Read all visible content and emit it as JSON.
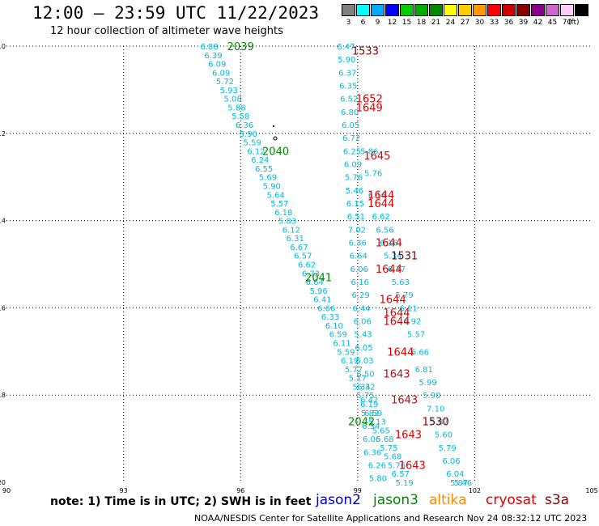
{
  "header": {
    "title": "12:00 — 23:59 UTC 11/22/2023",
    "subtitle": "12 hour collection of altimeter wave heights"
  },
  "colorbar": {
    "unit": "(ft)",
    "steps": [
      {
        "label": "3",
        "color": "#808080"
      },
      {
        "label": "6",
        "color": "#00ffff"
      },
      {
        "label": "9",
        "color": "#00aaff"
      },
      {
        "label": "12",
        "color": "#0000ff"
      },
      {
        "label": "15",
        "color": "#00cc00"
      },
      {
        "label": "18",
        "color": "#00aa00"
      },
      {
        "label": "21",
        "color": "#008800"
      },
      {
        "label": "24",
        "color": "#ffff00"
      },
      {
        "label": "27",
        "color": "#ffcc00"
      },
      {
        "label": "30",
        "color": "#ff9900"
      },
      {
        "label": "33",
        "color": "#ff0000"
      },
      {
        "label": "36",
        "color": "#cc0000"
      },
      {
        "label": "39",
        "color": "#880000"
      },
      {
        "label": "42",
        "color": "#880088"
      },
      {
        "label": "45",
        "color": "#cc66cc"
      },
      {
        "label": "70",
        "color": "#ffccff"
      },
      {
        "label": "",
        "color": "#000000"
      }
    ]
  },
  "axes": {
    "lon_ticks": [
      "90",
      "93",
      "96",
      "99",
      "102",
      "105"
    ],
    "lat_ticks": [
      "-10",
      "-12",
      "-14",
      "-16",
      "-18",
      "-20"
    ],
    "lon_range": [
      90,
      105
    ],
    "lat_range": [
      -20,
      -10
    ]
  },
  "colors": {
    "swh": "#00bbdd",
    "jason2": "#0000cc",
    "jason3": "#008800",
    "altika": "#ff8800",
    "cryosat": "#dd0000",
    "s3a": "#880000"
  },
  "tracks": [
    {
      "name": "track-a",
      "values": [
        {
          "lon": 95.2,
          "lat": -10.0,
          "v": "6.88"
        },
        {
          "lon": 95.3,
          "lat": -10.2,
          "v": "6.39"
        },
        {
          "lon": 95.4,
          "lat": -10.4,
          "v": "6.09"
        },
        {
          "lon": 95.5,
          "lat": -10.6,
          "v": "6.09"
        },
        {
          "lon": 95.6,
          "lat": -10.8,
          "v": "5.72"
        },
        {
          "lon": 95.7,
          "lat": -11.0,
          "v": "5.93"
        },
        {
          "lon": 95.8,
          "lat": -11.2,
          "v": "5.08"
        },
        {
          "lon": 95.9,
          "lat": -11.4,
          "v": "5.88"
        },
        {
          "lon": 96.0,
          "lat": -11.6,
          "v": "5.58"
        },
        {
          "lon": 96.1,
          "lat": -11.8,
          "v": "6.36"
        },
        {
          "lon": 96.2,
          "lat": -12.0,
          "v": "5.90"
        },
        {
          "lon": 96.3,
          "lat": -12.2,
          "v": "5.59"
        },
        {
          "lon": 96.4,
          "lat": -12.4,
          "v": "6.12"
        },
        {
          "lon": 96.5,
          "lat": -12.6,
          "v": "6.24"
        },
        {
          "lon": 96.6,
          "lat": -12.8,
          "v": "6.55"
        },
        {
          "lon": 96.7,
          "lat": -13.0,
          "v": "5.69"
        },
        {
          "lon": 96.8,
          "lat": -13.2,
          "v": "5.90"
        },
        {
          "lon": 96.9,
          "lat": -13.4,
          "v": "5.64"
        },
        {
          "lon": 97.0,
          "lat": -13.6,
          "v": "5.57"
        },
        {
          "lon": 97.1,
          "lat": -13.8,
          "v": "6.18"
        },
        {
          "lon": 97.2,
          "lat": -14.0,
          "v": "5.83"
        },
        {
          "lon": 97.3,
          "lat": -14.2,
          "v": "6.12"
        },
        {
          "lon": 97.4,
          "lat": -14.4,
          "v": "6.31"
        },
        {
          "lon": 97.5,
          "lat": -14.6,
          "v": "6.67"
        },
        {
          "lon": 97.6,
          "lat": -14.8,
          "v": "6.57"
        },
        {
          "lon": 97.7,
          "lat": -15.0,
          "v": "6.62"
        },
        {
          "lon": 97.8,
          "lat": -15.2,
          "v": "6.73"
        },
        {
          "lon": 97.9,
          "lat": -15.4,
          "v": "6.64"
        },
        {
          "lon": 98.0,
          "lat": -15.6,
          "v": "5.96"
        },
        {
          "lon": 98.1,
          "lat": -15.8,
          "v": "6.41"
        },
        {
          "lon": 98.2,
          "lat": -16.0,
          "v": "6.66"
        },
        {
          "lon": 98.3,
          "lat": -16.2,
          "v": "6.33"
        },
        {
          "lon": 98.4,
          "lat": -16.4,
          "v": "6.10"
        },
        {
          "lon": 98.5,
          "lat": -16.6,
          "v": "6.59"
        },
        {
          "lon": 98.6,
          "lat": -16.8,
          "v": "6.11"
        },
        {
          "lon": 98.7,
          "lat": -17.0,
          "v": "5.59"
        },
        {
          "lon": 98.8,
          "lat": -17.2,
          "v": "6.19"
        },
        {
          "lon": 98.9,
          "lat": -17.4,
          "v": "5.77"
        },
        {
          "lon": 99.0,
          "lat": -17.6,
          "v": "5.17"
        },
        {
          "lon": 99.1,
          "lat": -17.8,
          "v": "5.34"
        },
        {
          "lon": 99.2,
          "lat": -18.0,
          "v": "5.75"
        },
        {
          "lon": 99.3,
          "lat": -18.2,
          "v": "6.19"
        },
        {
          "lon": 99.4,
          "lat": -18.4,
          "v": "6.59"
        },
        {
          "lon": 99.5,
          "lat": -18.6,
          "v": "5.13"
        },
        {
          "lon": 99.6,
          "lat": -18.8,
          "v": "5.65"
        },
        {
          "lon": 99.7,
          "lat": -19.0,
          "v": "5.68"
        },
        {
          "lon": 99.8,
          "lat": -19.2,
          "v": "5.75"
        },
        {
          "lon": 99.9,
          "lat": -19.4,
          "v": "5.68"
        },
        {
          "lon": 100.0,
          "lat": -19.6,
          "v": "5.76"
        },
        {
          "lon": 100.1,
          "lat": -19.8,
          "v": "6.57"
        },
        {
          "lon": 100.2,
          "lat": -20.0,
          "v": "5.19"
        }
      ]
    },
    {
      "name": "track-b",
      "values": [
        {
          "lon": 98.7,
          "lat": -10.0,
          "v": "6.47"
        },
        {
          "lon": 98.72,
          "lat": -10.3,
          "v": "5.90"
        },
        {
          "lon": 98.74,
          "lat": -10.6,
          "v": "6.37"
        },
        {
          "lon": 98.76,
          "lat": -10.9,
          "v": "6.35"
        },
        {
          "lon": 98.78,
          "lat": -11.2,
          "v": "6.52"
        },
        {
          "lon": 98.8,
          "lat": -11.5,
          "v": "6.80"
        },
        {
          "lon": 98.82,
          "lat": -11.8,
          "v": "6.05"
        },
        {
          "lon": 98.84,
          "lat": -12.1,
          "v": "6.72"
        },
        {
          "lon": 98.86,
          "lat": -12.4,
          "v": "6.25"
        },
        {
          "lon": 98.88,
          "lat": -12.7,
          "v": "6.09"
        },
        {
          "lon": 98.9,
          "lat": -13.0,
          "v": "5.76"
        },
        {
          "lon": 98.92,
          "lat": -13.3,
          "v": "5.46"
        },
        {
          "lon": 98.94,
          "lat": -13.6,
          "v": "6.15"
        },
        {
          "lon": 98.96,
          "lat": -13.9,
          "v": "6.51"
        },
        {
          "lon": 98.98,
          "lat": -14.2,
          "v": "7.02"
        },
        {
          "lon": 99.0,
          "lat": -14.5,
          "v": "6.36"
        },
        {
          "lon": 99.02,
          "lat": -14.8,
          "v": "6.64"
        },
        {
          "lon": 99.04,
          "lat": -15.1,
          "v": "6.06"
        },
        {
          "lon": 99.06,
          "lat": -15.4,
          "v": "6.16"
        },
        {
          "lon": 99.08,
          "lat": -15.7,
          "v": "6.29"
        },
        {
          "lon": 99.1,
          "lat": -16.0,
          "v": "6.44"
        },
        {
          "lon": 99.12,
          "lat": -16.3,
          "v": "6.06"
        },
        {
          "lon": 99.14,
          "lat": -16.6,
          "v": "5.43"
        },
        {
          "lon": 99.16,
          "lat": -16.9,
          "v": "6.05"
        },
        {
          "lon": 99.18,
          "lat": -17.2,
          "v": "6.03"
        },
        {
          "lon": 99.2,
          "lat": -17.5,
          "v": "6.50"
        },
        {
          "lon": 99.22,
          "lat": -17.8,
          "v": "6.32"
        },
        {
          "lon": 99.3,
          "lat": -18.1,
          "v": "6.42"
        },
        {
          "lon": 99.32,
          "lat": -18.4,
          "v": "5.83"
        },
        {
          "lon": 99.34,
          "lat": -18.7,
          "v": "6.34"
        },
        {
          "lon": 99.36,
          "lat": -19.0,
          "v": "6.06"
        },
        {
          "lon": 99.38,
          "lat": -19.3,
          "v": "6.36"
        },
        {
          "lon": 99.5,
          "lat": -19.6,
          "v": "6.26"
        },
        {
          "lon": 99.52,
          "lat": -19.9,
          "v": "5.80"
        }
      ]
    },
    {
      "name": "track-c",
      "values": [
        {
          "lon": 99.3,
          "lat": -12.4,
          "v": "5.86"
        },
        {
          "lon": 99.4,
          "lat": -12.9,
          "v": "5.76"
        },
        {
          "lon": 99.5,
          "lat": -13.4,
          "v": "6.16"
        },
        {
          "lon": 99.6,
          "lat": -13.9,
          "v": "6.62"
        },
        {
          "lon": 99.7,
          "lat": -14.2,
          "v": "6.56"
        },
        {
          "lon": 99.8,
          "lat": -14.5,
          "v": "6.16"
        },
        {
          "lon": 99.9,
          "lat": -14.8,
          "v": "5.34"
        },
        {
          "lon": 100.0,
          "lat": -15.1,
          "v": "6.37"
        },
        {
          "lon": 100.1,
          "lat": -15.4,
          "v": "5.63"
        },
        {
          "lon": 100.2,
          "lat": -15.7,
          "v": "5.79"
        },
        {
          "lon": 100.3,
          "lat": -16.0,
          "v": "6.11"
        },
        {
          "lon": 100.4,
          "lat": -16.3,
          "v": "6.92"
        },
        {
          "lon": 100.5,
          "lat": -16.6,
          "v": "5.57"
        },
        {
          "lon": 100.6,
          "lat": -17.0,
          "v": "6.66"
        },
        {
          "lon": 100.7,
          "lat": -17.4,
          "v": "6.81"
        },
        {
          "lon": 100.8,
          "lat": -17.7,
          "v": "5.99"
        },
        {
          "lon": 100.9,
          "lat": -18.0,
          "v": "5.90"
        },
        {
          "lon": 101.0,
          "lat": -18.3,
          "v": "7.10"
        },
        {
          "lon": 101.1,
          "lat": -18.6,
          "v": "5.87"
        },
        {
          "lon": 101.2,
          "lat": -18.9,
          "v": "5.60"
        },
        {
          "lon": 101.3,
          "lat": -19.2,
          "v": "5.79"
        },
        {
          "lon": 101.4,
          "lat": -19.5,
          "v": "6.06"
        },
        {
          "lon": 101.5,
          "lat": -19.8,
          "v": "6.04"
        },
        {
          "lon": 101.6,
          "lat": -20.0,
          "v": "5.87"
        },
        {
          "lon": 101.7,
          "lat": -20.0,
          "v": "5.46"
        }
      ]
    }
  ],
  "passes": [
    {
      "lon": 96.0,
      "lat": -10.0,
      "time": "2039",
      "sat": "jason3"
    },
    {
      "lon": 96.9,
      "lat": -12.4,
      "time": "2040",
      "sat": "jason3"
    },
    {
      "lon": 98.0,
      "lat": -15.3,
      "time": "2041",
      "sat": "jason3"
    },
    {
      "lon": 99.1,
      "lat": -18.6,
      "time": "2042",
      "sat": "jason3"
    },
    {
      "lon": 99.2,
      "lat": -10.1,
      "time": "1533",
      "sat": "s3a"
    },
    {
      "lon": 99.3,
      "lat": -11.2,
      "time": "1652",
      "sat": "cryosat"
    },
    {
      "lon": 99.3,
      "lat": -11.4,
      "time": "1649",
      "sat": "cryosat"
    },
    {
      "lon": 99.5,
      "lat": -12.5,
      "time": "1645",
      "sat": "cryosat"
    },
    {
      "lon": 99.6,
      "lat": -13.4,
      "time": "1644",
      "sat": "cryosat"
    },
    {
      "lon": 99.6,
      "lat": -13.6,
      "time": "1644",
      "sat": "cryosat"
    },
    {
      "lon": 99.8,
      "lat": -14.5,
      "time": "1644",
      "sat": "cryosat"
    },
    {
      "lon": 100.2,
      "lat": -14.8,
      "time": "1531",
      "sat": "s3a"
    },
    {
      "lon": 99.8,
      "lat": -15.1,
      "time": "1644",
      "sat": "cryosat"
    },
    {
      "lon": 99.9,
      "lat": -15.8,
      "time": "1644",
      "sat": "cryosat"
    },
    {
      "lon": 100.0,
      "lat": -16.1,
      "time": "1644",
      "sat": "cryosat"
    },
    {
      "lon": 100.0,
      "lat": -16.3,
      "time": "1644",
      "sat": "cryosat"
    },
    {
      "lon": 100.1,
      "lat": -17.0,
      "time": "1644",
      "sat": "cryosat"
    },
    {
      "lon": 100.0,
      "lat": -17.5,
      "time": "1643",
      "sat": "cryosat"
    },
    {
      "lon": 100.2,
      "lat": -18.1,
      "time": "1643",
      "sat": "cryosat"
    },
    {
      "lon": 101.0,
      "lat": -18.6,
      "time": "1530",
      "sat": "s3a"
    },
    {
      "lon": 100.3,
      "lat": -18.9,
      "time": "1643",
      "sat": "cryosat"
    },
    {
      "lon": 100.4,
      "lat": -19.6,
      "time": "1643",
      "sat": "cryosat"
    }
  ],
  "note": "note:  1) Time is in UTC;  2) SWH is in feet",
  "legend": [
    {
      "key": "jason2",
      "label": "jason2"
    },
    {
      "key": "jason3",
      "label": "jason3"
    },
    {
      "key": "altika",
      "label": "altika"
    },
    {
      "key": "cryosat",
      "label": "cryosat"
    },
    {
      "key": "s3a",
      "label": "s3a"
    }
  ],
  "credit": "NOAA/NESDIS Center for Satellite Applications and Research     Nov 24 08:32:12 UTC 2023"
}
